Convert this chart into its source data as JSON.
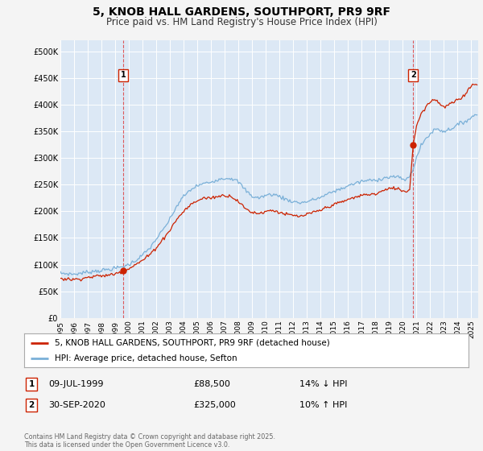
{
  "title": "5, KNOB HALL GARDENS, SOUTHPORT, PR9 9RF",
  "subtitle": "Price paid vs. HM Land Registry's House Price Index (HPI)",
  "title_fontsize": 10,
  "subtitle_fontsize": 8.5,
  "fig_bg_color": "#f4f4f4",
  "plot_bg_color": "#dce8f5",
  "ylim": [
    0,
    520000
  ],
  "yticks": [
    0,
    50000,
    100000,
    150000,
    200000,
    250000,
    300000,
    350000,
    400000,
    450000,
    500000
  ],
  "ytick_labels": [
    "£0",
    "£50K",
    "£100K",
    "£150K",
    "£200K",
    "£250K",
    "£300K",
    "£350K",
    "£400K",
    "£450K",
    "£500K"
  ],
  "sale1_price": 88500,
  "sale2_price": 325000,
  "red_line_color": "#cc2200",
  "blue_line_color": "#7ab0d8",
  "sale_marker_color": "#cc2200",
  "legend_line1": "5, KNOB HALL GARDENS, SOUTHPORT, PR9 9RF (detached house)",
  "legend_line2": "HPI: Average price, detached house, Sefton",
  "copyright": "Contains HM Land Registry data © Crown copyright and database right 2025.\nThis data is licensed under the Open Government Licence v3.0.",
  "xlim_start": 1995.0,
  "xlim_end": 2025.5,
  "hpi_anchors": [
    [
      1995.0,
      84000
    ],
    [
      1995.5,
      83000
    ],
    [
      1996.0,
      82000
    ],
    [
      1996.5,
      84000
    ],
    [
      1997.0,
      86000
    ],
    [
      1997.5,
      88000
    ],
    [
      1998.0,
      89000
    ],
    [
      1998.5,
      91000
    ],
    [
      1999.0,
      93000
    ],
    [
      1999.5,
      96000
    ],
    [
      2000.0,
      100000
    ],
    [
      2000.5,
      108000
    ],
    [
      2001.0,
      118000
    ],
    [
      2001.5,
      130000
    ],
    [
      2002.0,
      148000
    ],
    [
      2002.5,
      165000
    ],
    [
      2003.0,
      185000
    ],
    [
      2003.5,
      210000
    ],
    [
      2004.0,
      228000
    ],
    [
      2004.5,
      240000
    ],
    [
      2005.0,
      248000
    ],
    [
      2005.5,
      252000
    ],
    [
      2006.0,
      255000
    ],
    [
      2006.5,
      260000
    ],
    [
      2007.0,
      262000
    ],
    [
      2007.5,
      262000
    ],
    [
      2008.0,
      255000
    ],
    [
      2008.5,
      240000
    ],
    [
      2009.0,
      228000
    ],
    [
      2009.5,
      225000
    ],
    [
      2010.0,
      230000
    ],
    [
      2010.5,
      232000
    ],
    [
      2011.0,
      228000
    ],
    [
      2011.5,
      222000
    ],
    [
      2012.0,
      218000
    ],
    [
      2012.5,
      216000
    ],
    [
      2013.0,
      218000
    ],
    [
      2013.5,
      222000
    ],
    [
      2014.0,
      226000
    ],
    [
      2014.5,
      232000
    ],
    [
      2015.0,
      238000
    ],
    [
      2015.5,
      242000
    ],
    [
      2016.0,
      248000
    ],
    [
      2016.5,
      252000
    ],
    [
      2017.0,
      256000
    ],
    [
      2017.5,
      258000
    ],
    [
      2018.0,
      258000
    ],
    [
      2018.5,
      262000
    ],
    [
      2019.0,
      264000
    ],
    [
      2019.5,
      265000
    ],
    [
      2020.0,
      260000
    ],
    [
      2020.25,
      260000
    ],
    [
      2020.5,
      265000
    ],
    [
      2020.75,
      280000
    ],
    [
      2021.0,
      300000
    ],
    [
      2021.25,
      318000
    ],
    [
      2021.5,
      330000
    ],
    [
      2021.75,
      338000
    ],
    [
      2022.0,
      345000
    ],
    [
      2022.25,
      352000
    ],
    [
      2022.5,
      355000
    ],
    [
      2022.75,
      352000
    ],
    [
      2023.0,
      350000
    ],
    [
      2023.25,
      352000
    ],
    [
      2023.5,
      355000
    ],
    [
      2023.75,
      358000
    ],
    [
      2024.0,
      362000
    ],
    [
      2024.25,
      365000
    ],
    [
      2024.5,
      368000
    ],
    [
      2024.75,
      372000
    ],
    [
      2025.0,
      375000
    ],
    [
      2025.3,
      382000
    ]
  ],
  "red_anchors": [
    [
      1995.0,
      74000
    ],
    [
      1995.5,
      73000
    ],
    [
      1996.0,
      72000
    ],
    [
      1996.5,
      74000
    ],
    [
      1997.0,
      76000
    ],
    [
      1997.5,
      78000
    ],
    [
      1998.0,
      79000
    ],
    [
      1998.5,
      80000
    ],
    [
      1999.0,
      83000
    ],
    [
      1999.583,
      88500
    ],
    [
      2000.0,
      93000
    ],
    [
      2000.5,
      100000
    ],
    [
      2001.0,
      108000
    ],
    [
      2001.5,
      118000
    ],
    [
      2002.0,
      132000
    ],
    [
      2002.5,
      148000
    ],
    [
      2003.0,
      165000
    ],
    [
      2003.5,
      185000
    ],
    [
      2004.0,
      200000
    ],
    [
      2004.5,
      212000
    ],
    [
      2005.0,
      220000
    ],
    [
      2005.5,
      225000
    ],
    [
      2006.0,
      225000
    ],
    [
      2006.5,
      228000
    ],
    [
      2007.0,
      230000
    ],
    [
      2007.5,
      228000
    ],
    [
      2008.0,
      218000
    ],
    [
      2008.5,
      205000
    ],
    [
      2009.0,
      198000
    ],
    [
      2009.5,
      196000
    ],
    [
      2010.0,
      200000
    ],
    [
      2010.5,
      202000
    ],
    [
      2011.0,
      198000
    ],
    [
      2011.5,
      194000
    ],
    [
      2012.0,
      192000
    ],
    [
      2012.5,
      190000
    ],
    [
      2013.0,
      194000
    ],
    [
      2013.5,
      198000
    ],
    [
      2014.0,
      202000
    ],
    [
      2014.5,
      208000
    ],
    [
      2015.0,
      213000
    ],
    [
      2015.5,
      217000
    ],
    [
      2016.0,
      222000
    ],
    [
      2016.5,
      226000
    ],
    [
      2017.0,
      230000
    ],
    [
      2017.5,
      232000
    ],
    [
      2018.0,
      232000
    ],
    [
      2018.5,
      238000
    ],
    [
      2019.0,
      242000
    ],
    [
      2019.5,
      244000
    ],
    [
      2020.0,
      238000
    ],
    [
      2020.25,
      238000
    ],
    [
      2020.5,
      240000
    ],
    [
      2020.75,
      325000
    ],
    [
      2021.0,
      360000
    ],
    [
      2021.25,
      378000
    ],
    [
      2021.5,
      390000
    ],
    [
      2021.75,
      398000
    ],
    [
      2022.0,
      405000
    ],
    [
      2022.25,
      410000
    ],
    [
      2022.5,
      408000
    ],
    [
      2022.75,
      400000
    ],
    [
      2023.0,
      395000
    ],
    [
      2023.25,
      398000
    ],
    [
      2023.5,
      402000
    ],
    [
      2023.75,
      405000
    ],
    [
      2024.0,
      408000
    ],
    [
      2024.25,
      412000
    ],
    [
      2024.5,
      418000
    ],
    [
      2024.75,
      428000
    ],
    [
      2025.0,
      435000
    ],
    [
      2025.3,
      440000
    ]
  ]
}
